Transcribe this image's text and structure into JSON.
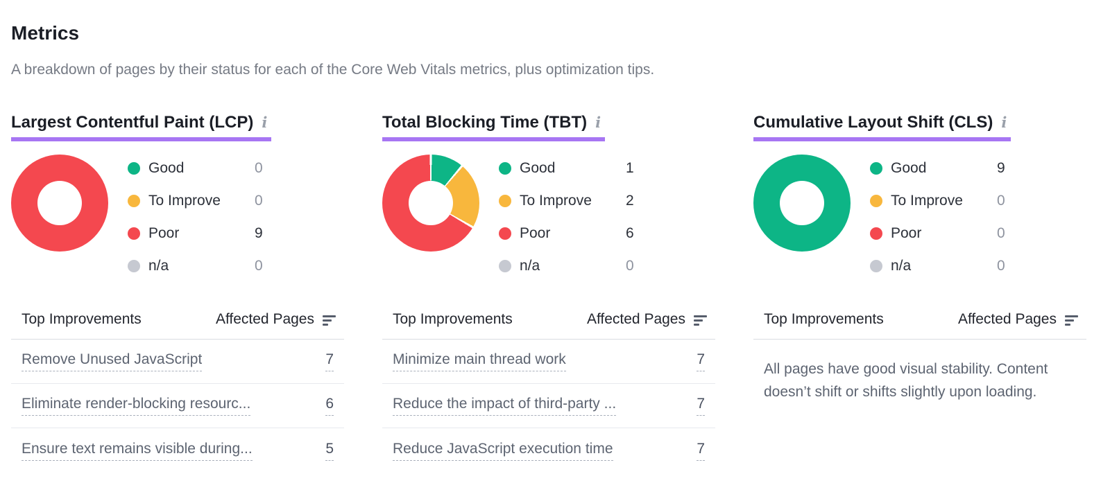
{
  "header": {
    "title": "Metrics",
    "subtitle": "A breakdown of pages by their status for each of the Core Web Vitals metrics, plus optimization tips."
  },
  "colors": {
    "title_underline": "#a776f3",
    "good": "#0db586",
    "to_improve": "#f8b73d",
    "poor": "#f4484f",
    "na": "#c6c9d1"
  },
  "icons": {
    "info_glyph": "i",
    "sort": "sort-descending-icon"
  },
  "table": {
    "improvements_header": "Top Improvements",
    "affected_pages_header": "Affected Pages"
  },
  "legend": {
    "labels": [
      "Good",
      "To Improve",
      "Poor",
      "n/a"
    ],
    "color_keys": [
      "good",
      "to_improve",
      "poor",
      "na"
    ]
  },
  "metrics": [
    {
      "title": "Largest Contentful Paint (LCP)",
      "improvements": [
        {
          "label": "Remove Unused JavaScript",
          "pages": 7
        },
        {
          "label": "Eliminate render-blocking resourc...",
          "pages": 6
        },
        {
          "label": "Ensure text remains visible during...",
          "pages": 5
        }
      ],
      "note": null
    },
    {
      "title": "Total Blocking Time (TBT)",
      "improvements": [
        {
          "label": "Minimize main thread work",
          "pages": 7
        },
        {
          "label": "Reduce the impact of third-party ...",
          "pages": 7
        },
        {
          "label": "Reduce JavaScript execution time",
          "pages": 7
        }
      ],
      "note": null
    },
    {
      "title": "Cumulative Layout Shift (CLS)",
      "improvements": [],
      "note": "All pages have good visual stability. Content doesn’t shift or shifts slightly upon loading."
    }
  ],
  "chart_data": [
    {
      "type": "pie",
      "title": "Largest Contentful Paint (LCP)",
      "categories": [
        "Good",
        "To Improve",
        "Poor",
        "n/a"
      ],
      "values": [
        0,
        0,
        9,
        0
      ],
      "legend_position": "right"
    },
    {
      "type": "pie",
      "title": "Total Blocking Time (TBT)",
      "categories": [
        "Good",
        "To Improve",
        "Poor",
        "n/a"
      ],
      "values": [
        1,
        2,
        6,
        0
      ],
      "legend_position": "right"
    },
    {
      "type": "pie",
      "title": "Cumulative Layout Shift (CLS)",
      "categories": [
        "Good",
        "To Improve",
        "Poor",
        "n/a"
      ],
      "values": [
        9,
        0,
        0,
        0
      ],
      "legend_position": "right"
    }
  ]
}
